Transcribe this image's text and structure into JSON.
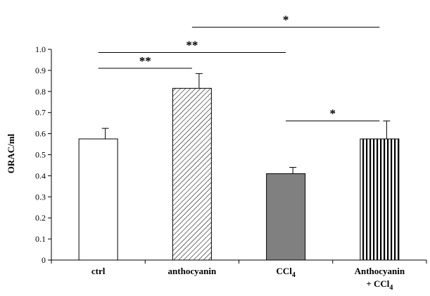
{
  "chart_data": {
    "type": "bar",
    "title": "",
    "xlabel": "",
    "ylabel": "ORAC/ml",
    "ylim": [
      0,
      1.0
    ],
    "yticks": [
      "0",
      "0.1",
      "0.2",
      "0.3",
      "0.4",
      "0.5",
      "0.6",
      "0.7",
      "0.8",
      "0.9",
      "1.0"
    ],
    "grid": false,
    "categories": [
      {
        "main": "ctrl",
        "sub": "",
        "line2": "",
        "line2sub": ""
      },
      {
        "main": "anthocyanin",
        "sub": "",
        "line2": "",
        "line2sub": ""
      },
      {
        "main": "CCl",
        "sub": "4",
        "line2": "",
        "line2sub": ""
      },
      {
        "main": "Anthocyanin",
        "sub": "",
        "line2": "+ CCl",
        "line2sub": "4"
      }
    ],
    "values": [
      0.575,
      0.815,
      0.41,
      0.575
    ],
    "errors": [
      0.05,
      0.07,
      0.03,
      0.085
    ],
    "fills": [
      "white",
      "diagonal-hatch",
      "solid-gray",
      "vertical-stripes"
    ],
    "colors": {
      "solid": "#808080",
      "stroke": "#000000",
      "background": "#ffffff"
    },
    "significance": [
      {
        "from": 0,
        "to": 1,
        "label": "**",
        "level": 0.91
      },
      {
        "from": 0,
        "to": 2,
        "label": "**",
        "level": 0.985
      },
      {
        "from": 1,
        "to": 3,
        "label": "*",
        "level": 1.105
      },
      {
        "from": 2,
        "to": 3,
        "label": "*",
        "level": 0.66
      }
    ]
  }
}
